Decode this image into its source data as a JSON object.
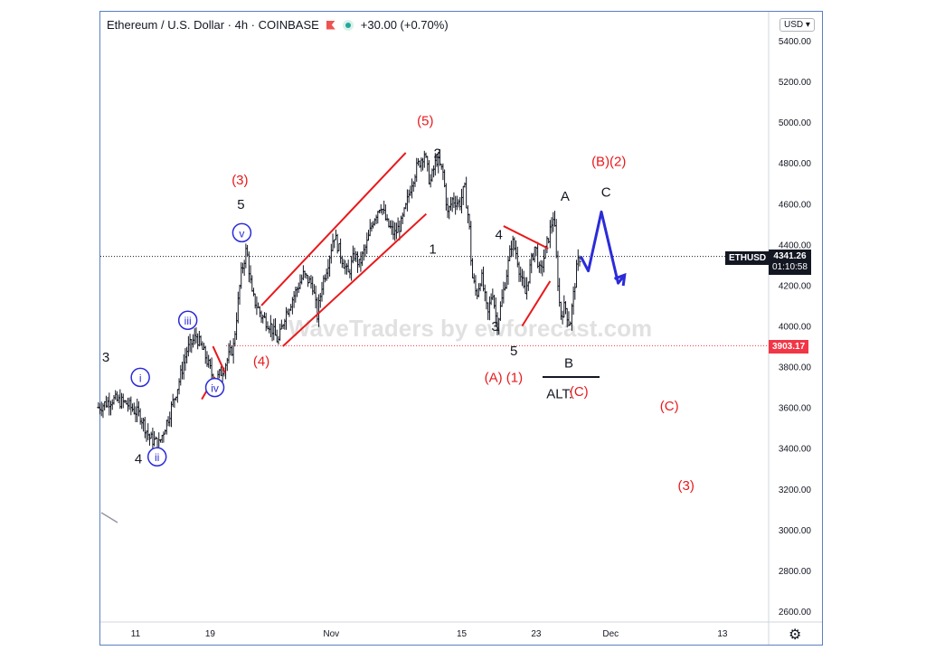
{
  "header": {
    "symbol": "Ethereum / U.S. Dollar · 4h · COINBASE",
    "change": "+30.00 (+0.70%)",
    "currency": "USD ▾"
  },
  "watermark": "WaveTraders by ewforecast.com",
  "price_tags": {
    "symbol_label": "ETHUSD",
    "current_price": "4341.26",
    "countdown": "01:10:58",
    "support_level": "3903.17"
  },
  "colors": {
    "candle": "#131722",
    "wave_red": "#e8191c",
    "wave_blue": "#2b2bd9",
    "support_line": "#f23645"
  },
  "chart_data": {
    "type": "line",
    "title": "",
    "ylim": [
      2500,
      5550
    ],
    "y_ticks": [
      2600,
      2800,
      3000,
      3200,
      3400,
      3600,
      3800,
      4000,
      4200,
      4400,
      4600,
      4800,
      5000,
      5200,
      5400
    ],
    "y_tick_labels": [
      "2600.00",
      "2800.00",
      "3000.00",
      "3200.00",
      "3400.00",
      "3600.00",
      "3800.00",
      "4000.00",
      "4200.00",
      "4400.00",
      "4600.00",
      "4800.00",
      "5000.00",
      "5200.00",
      "5400.00"
    ],
    "x_ticks": [
      {
        "label": "11",
        "day": 11
      },
      {
        "label": "19",
        "day": 19
      },
      {
        "label": "Nov",
        "day": 32
      },
      {
        "label": "15",
        "day": 46
      },
      {
        "label": "23",
        "day": 54
      },
      {
        "label": "Dec",
        "day": 62
      },
      {
        "label": "13",
        "day": 74
      }
    ],
    "price_series": [
      [
        7.0,
        3600
      ],
      [
        8.5,
        3640
      ],
      [
        10.0,
        3620
      ],
      [
        11.5,
        3560
      ],
      [
        12.5,
        3450
      ],
      [
        13.5,
        3420
      ],
      [
        14.5,
        3550
      ],
      [
        15.5,
        3700
      ],
      [
        16.5,
        3880
      ],
      [
        17.5,
        3950
      ],
      [
        18.5,
        3850
      ],
      [
        19.5,
        3720
      ],
      [
        20.5,
        3800
      ],
      [
        21.5,
        3900
      ],
      [
        22.3,
        4250
      ],
      [
        22.9,
        4380
      ],
      [
        23.5,
        4150
      ],
      [
        24.5,
        4050
      ],
      [
        25.5,
        4000
      ],
      [
        26.3,
        3920
      ],
      [
        27.0,
        4050
      ],
      [
        28.0,
        4150
      ],
      [
        29.0,
        4250
      ],
      [
        30.0,
        4200
      ],
      [
        30.5,
        4050
      ],
      [
        31.0,
        4200
      ],
      [
        31.6,
        4300
      ],
      [
        32.3,
        4450
      ],
      [
        33.0,
        4350
      ],
      [
        33.8,
        4250
      ],
      [
        34.5,
        4350
      ],
      [
        35.0,
        4300
      ],
      [
        35.8,
        4400
      ],
      [
        36.5,
        4520
      ],
      [
        37.3,
        4600
      ],
      [
        38.0,
        4500
      ],
      [
        38.8,
        4450
      ],
      [
        39.5,
        4500
      ],
      [
        40.0,
        4580
      ],
      [
        40.6,
        4700
      ],
      [
        41.2,
        4780
      ],
      [
        42.0,
        4850
      ],
      [
        42.6,
        4700
      ],
      [
        43.3,
        4820
      ],
      [
        44.0,
        4750
      ],
      [
        44.5,
        4550
      ],
      [
        45.0,
        4620
      ],
      [
        45.8,
        4600
      ],
      [
        46.3,
        4680
      ],
      [
        46.8,
        4500
      ],
      [
        47.1,
        4250
      ],
      [
        47.6,
        4150
      ],
      [
        48.1,
        4250
      ],
      [
        48.8,
        4050
      ],
      [
        49.3,
        4180
      ],
      [
        49.8,
        4000
      ],
      [
        50.3,
        4120
      ],
      [
        50.8,
        4250
      ],
      [
        51.4,
        4420
      ],
      [
        51.9,
        4350
      ],
      [
        52.3,
        4250
      ],
      [
        52.8,
        4150
      ],
      [
        53.4,
        4300
      ],
      [
        53.9,
        4400
      ],
      [
        54.4,
        4250
      ],
      [
        54.9,
        4350
      ],
      [
        55.4,
        4450
      ],
      [
        55.9,
        4550
      ],
      [
        56.2,
        4300
      ],
      [
        56.6,
        4050
      ],
      [
        57.1,
        4100
      ],
      [
        57.6,
        4000
      ],
      [
        58.0,
        4150
      ],
      [
        58.4,
        4300
      ],
      [
        58.7,
        4341
      ]
    ],
    "wave_projection": [
      [
        58.8,
        4340
      ],
      [
        59.6,
        4270
      ],
      [
        61.0,
        4560
      ],
      [
        62.8,
        4210
      ],
      [
        63.5,
        4250
      ]
    ],
    "channels": [
      [
        [
          24.5,
          4100
        ],
        [
          40.0,
          4850
        ]
      ],
      [
        [
          26.8,
          3900
        ],
        [
          42.2,
          4550
        ]
      ],
      [
        [
          19.3,
          3900
        ],
        [
          20.6,
          3770
        ]
      ],
      [
        [
          18.1,
          3640
        ],
        [
          19.5,
          3750
        ]
      ],
      [
        [
          50.5,
          4490
        ],
        [
          55.3,
          4380
        ]
      ],
      [
        [
          52.5,
          4000
        ],
        [
          55.5,
          4220
        ]
      ]
    ],
    "support_level": 3903.17,
    "current_price": 4341.26,
    "labels": [
      {
        "text": "3",
        "day": 7.8,
        "price": 3830,
        "color": "black"
      },
      {
        "text": "i",
        "day": 11.5,
        "price": 3730,
        "color": "blue",
        "circled": true
      },
      {
        "text": "4",
        "day": 11.3,
        "price": 3330,
        "color": "black"
      },
      {
        "text": "ii",
        "day": 13.3,
        "price": 3340,
        "color": "blue",
        "circled": true
      },
      {
        "text": "iii",
        "day": 16.6,
        "price": 4010,
        "color": "blue",
        "circled": true
      },
      {
        "text": "iv",
        "day": 19.5,
        "price": 3680,
        "color": "blue",
        "circled": true
      },
      {
        "text": "v",
        "day": 22.4,
        "price": 4440,
        "color": "blue",
        "circled": true
      },
      {
        "text": "5",
        "day": 22.3,
        "price": 4580,
        "color": "black"
      },
      {
        "text": "(3)",
        "day": 22.2,
        "price": 4700,
        "color": "red"
      },
      {
        "text": "(4)",
        "day": 24.5,
        "price": 3810,
        "color": "red"
      },
      {
        "text": "(5)",
        "day": 42.1,
        "price": 4990,
        "color": "red"
      },
      {
        "text": "2",
        "day": 43.4,
        "price": 4830,
        "color": "black"
      },
      {
        "text": "1",
        "day": 42.9,
        "price": 4360,
        "color": "black"
      },
      {
        "text": "4",
        "day": 50.0,
        "price": 4430,
        "color": "black"
      },
      {
        "text": "3",
        "day": 49.6,
        "price": 3980,
        "color": "black"
      },
      {
        "text": "5",
        "day": 51.6,
        "price": 3860,
        "color": "black"
      },
      {
        "text": "(A) (1)",
        "day": 50.5,
        "price": 3730,
        "color": "red"
      },
      {
        "text": "A",
        "day": 57.1,
        "price": 4620,
        "color": "black"
      },
      {
        "text": "B",
        "day": 57.5,
        "price": 3800,
        "color": "black"
      },
      {
        "text": "ALT:",
        "day": 56.5,
        "price": 3650,
        "color": "black"
      },
      {
        "text": "(C)",
        "day": 58.6,
        "price": 3660,
        "color": "red"
      },
      {
        "text": "(B)(2)",
        "day": 61.8,
        "price": 4790,
        "color": "red"
      },
      {
        "text": "C",
        "day": 61.5,
        "price": 4640,
        "color": "black"
      },
      {
        "text": "(C)",
        "day": 68.3,
        "price": 3590,
        "color": "red"
      },
      {
        "text": "(3)",
        "day": 70.1,
        "price": 3200,
        "color": "red"
      }
    ]
  }
}
